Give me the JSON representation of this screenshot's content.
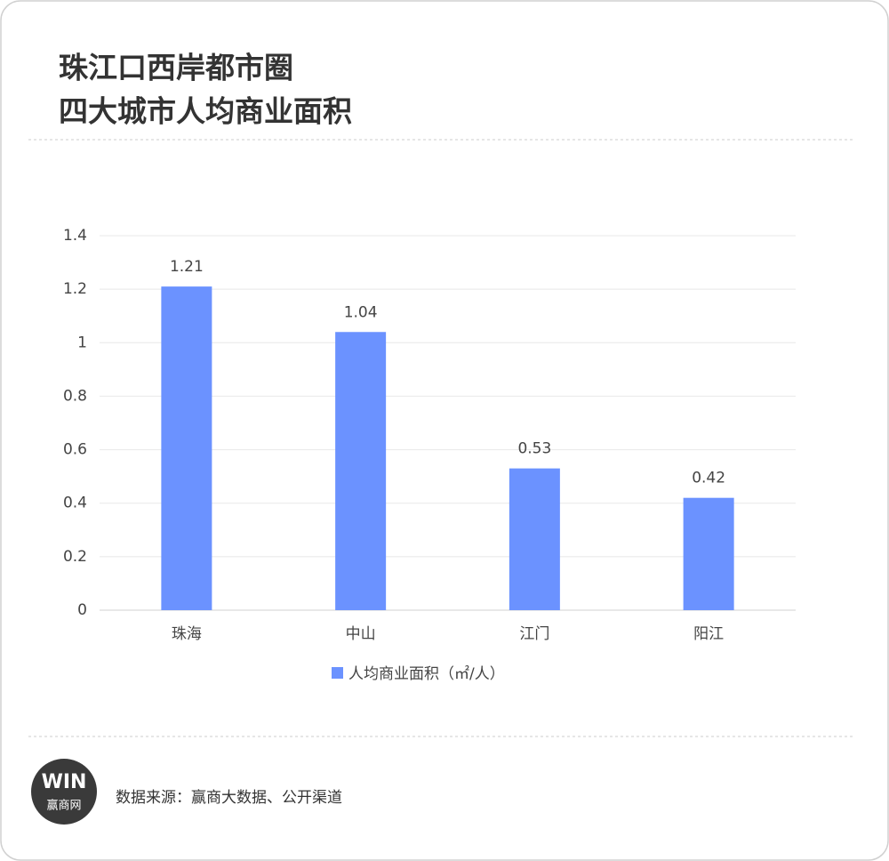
{
  "chart_data": {
    "type": "bar",
    "title": [
      "珠江口西岸都市圈",
      "四大城市人均商业面积"
    ],
    "categories": [
      "珠海",
      "中山",
      "江门",
      "阳江"
    ],
    "series": [
      {
        "name": "人均商业面积（㎡/人）",
        "color": "#6b92ff",
        "values": [
          1.21,
          1.04,
          0.53,
          0.42
        ]
      }
    ],
    "ylim": [
      0,
      1.4
    ],
    "yticks": [
      0,
      0.2,
      0.4,
      0.6,
      0.8,
      1,
      1.2,
      1.4
    ],
    "grid": true,
    "legend": "bottom"
  },
  "footer": {
    "logo_mark": "WIN",
    "logo_text": "赢商网",
    "source": "数据来源：赢商大数据、公开渠道"
  }
}
